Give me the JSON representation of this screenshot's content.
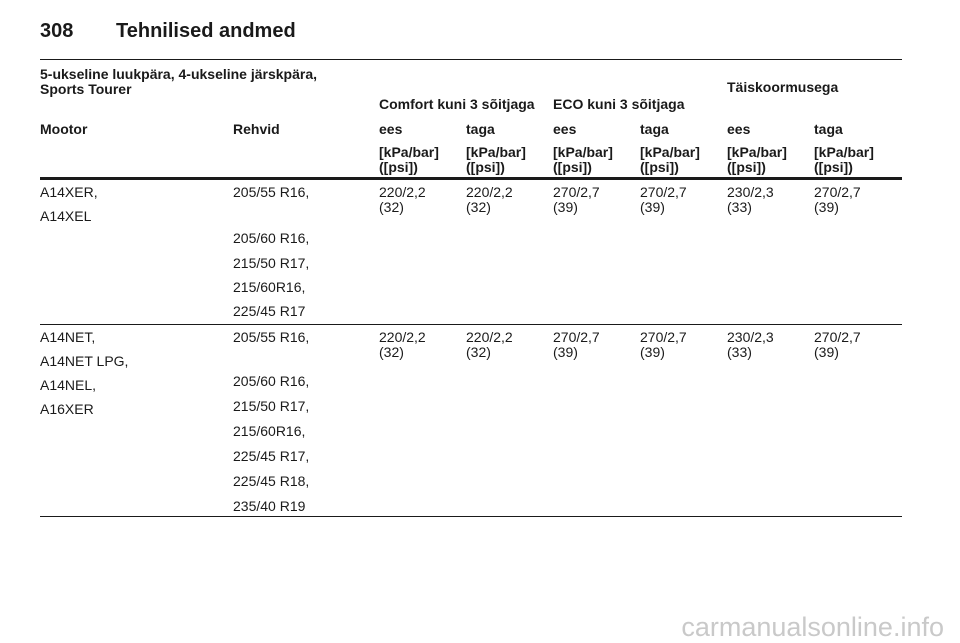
{
  "header": {
    "page_number": "308",
    "title": "Tehnilised andmed"
  },
  "table": {
    "group_header": {
      "vehicle": "5-ukseline luukpära, 4-ukseline järskpära, Sports Tourer",
      "comfort": "Comfort kuni 3 sõitjaga",
      "eco": "ECO kuni 3 sõitjaga",
      "full": "Täiskoormusega"
    },
    "columns": {
      "engine": "Mootor",
      "tyre": "Rehvid",
      "front": "ees",
      "rear": "taga",
      "unit": "[kPa/bar] ([psi])"
    },
    "rows": [
      {
        "engines": [
          "A14XER,",
          "A14XEL"
        ],
        "tyres": [
          "205/55 R16,",
          "205/60 R16,",
          "215/50 R17,",
          "215/60R16,",
          "225/45 R17"
        ],
        "pressures": [
          "220/2,2 (32)",
          "220/2,2 (32)",
          "270/2,7 (39)",
          "270/2,7 (39)",
          "230/2,3 (33)",
          "270/2,7 (39)"
        ]
      },
      {
        "engines": [
          "A14NET,",
          "A14NET LPG,",
          "A14NEL,",
          "A16XER"
        ],
        "tyres": [
          "205/55 R16,",
          "205/60 R16,",
          "215/50 R17,",
          "215/60R16,",
          "225/45 R17,",
          "225/45 R18,",
          "235/40 R19"
        ],
        "pressures": [
          "220/2,2 (32)",
          "220/2,2 (32)",
          "270/2,7 (39)",
          "270/2,7 (39)",
          "230/2,3 (33)",
          "270/2,7 (39)"
        ]
      }
    ]
  },
  "watermark": "carmanualsonline.info"
}
